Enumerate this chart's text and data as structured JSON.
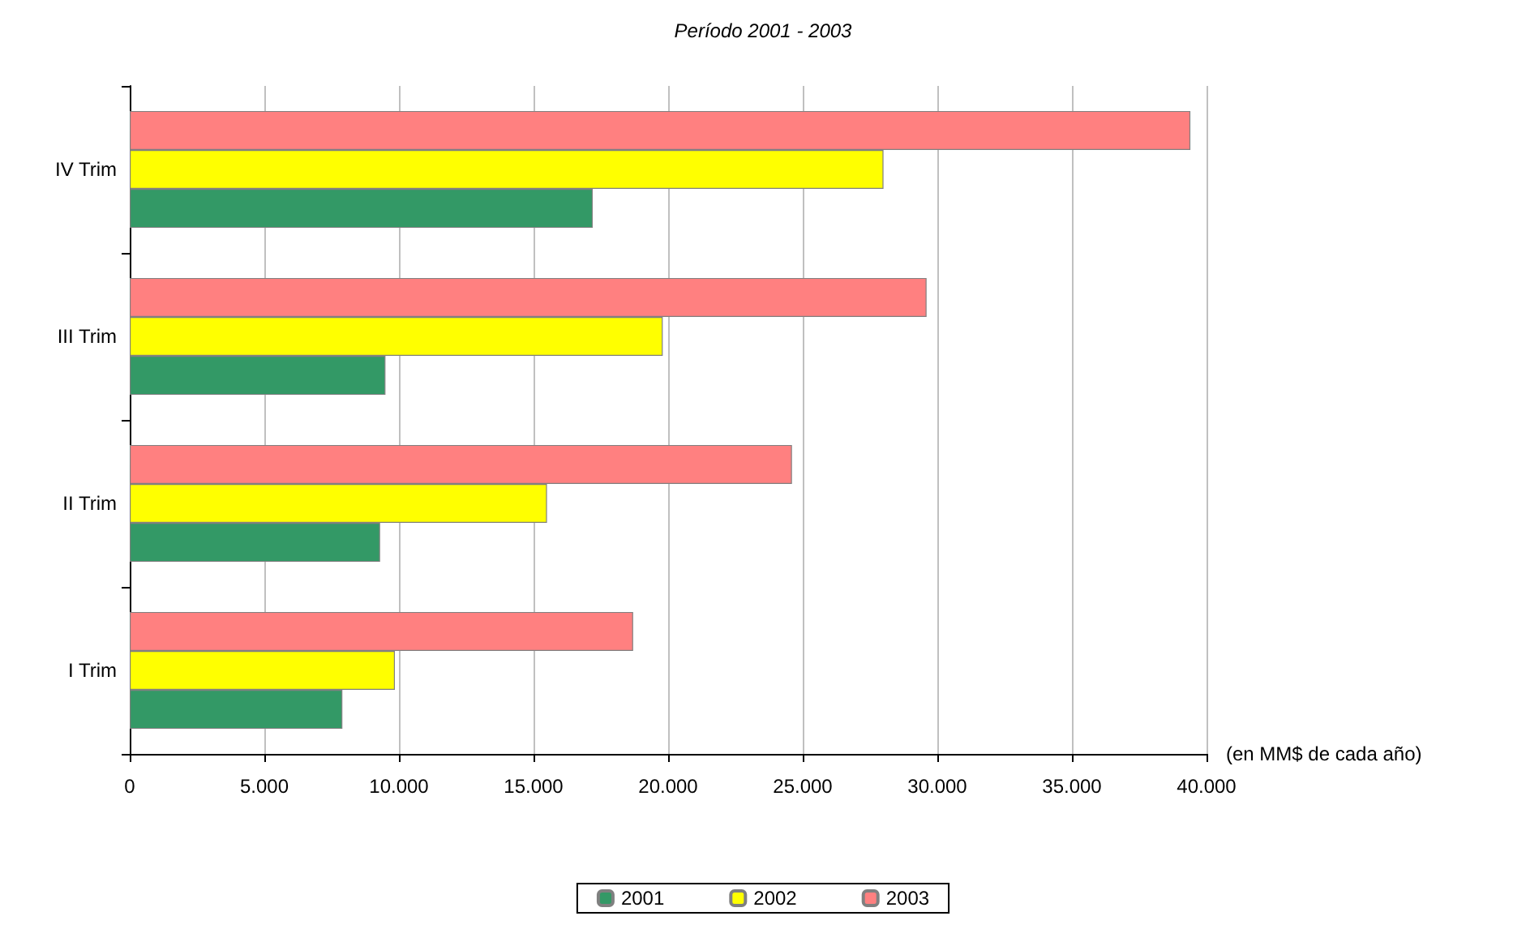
{
  "chart_data": {
    "type": "bar",
    "orientation": "horizontal",
    "subtitle": "Período 2001 - 2003",
    "xlabel": "(en MM$ de cada año)",
    "categories": [
      "IV Trim",
      "III Trim",
      "II Trim",
      "I Trim"
    ],
    "series": [
      {
        "name": "2001",
        "color": "#339966",
        "values": [
          17200,
          9500,
          9300,
          7900
        ]
      },
      {
        "name": "2002",
        "color": "#ffff00",
        "values": [
          28000,
          19800,
          15500,
          9850
        ]
      },
      {
        "name": "2003",
        "color": "#ff8080",
        "values": [
          39400,
          29600,
          24600,
          18700
        ]
      }
    ],
    "xlim": [
      0,
      40000
    ],
    "xticks": [
      0,
      {
        "value": 5000,
        "label": "5.000"
      },
      {
        "value": 10000,
        "label": "10.000"
      },
      {
        "value": 15000,
        "label": "15.000"
      },
      {
        "value": 20000,
        "label": "20.000"
      },
      {
        "value": 25000,
        "label": "25.000"
      },
      {
        "value": 30000,
        "label": "30.000"
      },
      {
        "value": 35000,
        "label": "35.000"
      },
      {
        "value": 40000,
        "label": "40.000"
      }
    ],
    "grid": "x",
    "legend": "bottom"
  }
}
